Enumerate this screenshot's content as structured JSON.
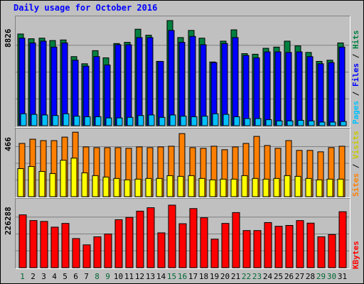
{
  "title": "Daily usage for October 2016",
  "colors": {
    "background": "#c0c0c0",
    "hits": "#008040",
    "files": "#0000ff",
    "pages": "#00c0ff",
    "visits": "#ffff00",
    "sites": "#ff8000",
    "kbytes": "#ff0000",
    "weekend_label": "#006633",
    "weekday_label": "#000000"
  },
  "right_labels": {
    "top": [
      "Pages",
      " / ",
      "Files",
      " / ",
      "Hits"
    ],
    "mid": [
      "Sites",
      " / ",
      "Visits"
    ],
    "bot": "KBytes"
  },
  "chart_data": [
    {
      "type": "bar",
      "name": "pages-files-hits",
      "categories": [
        "1",
        "2",
        "3",
        "4",
        "5",
        "6",
        "7",
        "8",
        "9",
        "10",
        "11",
        "12",
        "13",
        "14",
        "15",
        "16",
        "17",
        "18",
        "19",
        "20",
        "21",
        "22",
        "23",
        "24",
        "25",
        "26",
        "27",
        "28",
        "29",
        "30",
        "31"
      ],
      "weekend_days": [
        "1",
        "8",
        "9",
        "15",
        "16",
        "22",
        "23",
        "29",
        "30"
      ],
      "ymax_label": "8826",
      "ylim": [
        0,
        8826
      ],
      "series": [
        {
          "name": "Hits",
          "values": [
            7700,
            7300,
            7350,
            7150,
            7200,
            5800,
            5200,
            6300,
            5700,
            6900,
            7000,
            8100,
            7600,
            5400,
            8826,
            7400,
            8000,
            7350,
            5350,
            7100,
            8050,
            6050,
            6000,
            6500,
            6600,
            7100,
            6700,
            6150,
            5400,
            5500,
            6950
          ]
        },
        {
          "name": "Files",
          "values": [
            7350,
            6950,
            7100,
            6600,
            6950,
            5500,
            5000,
            5800,
            5100,
            6800,
            6800,
            7400,
            7400,
            5400,
            8000,
            7000,
            7500,
            6800,
            5300,
            6900,
            7400,
            5900,
            5700,
            6200,
            6200,
            6150,
            6200,
            5800,
            5200,
            5300,
            6600
          ]
        },
        {
          "name": "Pages",
          "values": [
            1000,
            950,
            900,
            850,
            1000,
            800,
            750,
            750,
            650,
            650,
            700,
            850,
            900,
            700,
            900,
            800,
            750,
            800,
            1000,
            950,
            750,
            600,
            600,
            500,
            400,
            400,
            450,
            400,
            300,
            300,
            350
          ]
        }
      ]
    },
    {
      "type": "bar",
      "name": "sites-visits",
      "categories": [
        "1",
        "2",
        "3",
        "4",
        "5",
        "6",
        "7",
        "8",
        "9",
        "10",
        "11",
        "12",
        "13",
        "14",
        "15",
        "16",
        "17",
        "18",
        "19",
        "20",
        "21",
        "22",
        "23",
        "24",
        "25",
        "26",
        "27",
        "28",
        "29",
        "30",
        "31"
      ],
      "ymax_label": "466",
      "ylim": [
        0,
        466
      ],
      "series": [
        {
          "name": "Sites",
          "values": [
            380,
            410,
            400,
            400,
            425,
            460,
            355,
            350,
            350,
            350,
            345,
            355,
            350,
            355,
            360,
            450,
            350,
            345,
            360,
            335,
            355,
            380,
            430,
            365,
            345,
            400,
            330,
            330,
            320,
            350,
            360
          ]
        },
        {
          "name": "Visits",
          "values": [
            200,
            215,
            180,
            165,
            260,
            275,
            170,
            150,
            140,
            130,
            120,
            125,
            130,
            130,
            150,
            145,
            150,
            130,
            120,
            125,
            125,
            150,
            130,
            125,
            130,
            150,
            145,
            130,
            120,
            125,
            125
          ]
        }
      ]
    },
    {
      "type": "bar",
      "name": "kbytes",
      "categories": [
        "1",
        "2",
        "3",
        "4",
        "5",
        "6",
        "7",
        "8",
        "9",
        "10",
        "11",
        "12",
        "13",
        "14",
        "15",
        "16",
        "17",
        "18",
        "19",
        "20",
        "21",
        "22",
        "23",
        "24",
        "25",
        "26",
        "27",
        "28",
        "29",
        "30",
        "31"
      ],
      "ymax_label": "226288",
      "ylim": [
        0,
        226288
      ],
      "series": [
        {
          "name": "KBytes",
          "values": [
            185000,
            165000,
            162000,
            142000,
            155000,
            102000,
            80000,
            108000,
            118000,
            168000,
            176000,
            198000,
            210000,
            122000,
            219000,
            154000,
            207000,
            175000,
            100000,
            155000,
            193000,
            130000,
            130000,
            158000,
            145000,
            148000,
            165000,
            156000,
            108000,
            116000,
            196000
          ]
        }
      ]
    }
  ]
}
